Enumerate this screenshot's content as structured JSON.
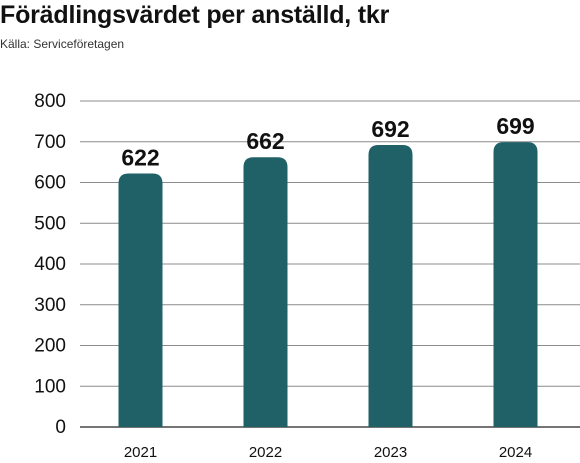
{
  "title": "Förädlingsvärdet per anställd, tkr",
  "source": "Källa: Serviceföretagen",
  "chart_data": {
    "type": "bar",
    "title": "Förädlingsvärdet per anställd, tkr",
    "subtitle": "Källa: Serviceföretagen",
    "categories": [
      "2021",
      "2022",
      "2023",
      "2024"
    ],
    "values": [
      622,
      662,
      692,
      699
    ],
    "value_labels": [
      "622",
      "662",
      "692",
      "699"
    ],
    "yticks": [
      "0",
      "100",
      "200",
      "300",
      "400",
      "500",
      "600",
      "700",
      "800"
    ],
    "ylim": [
      0,
      800
    ],
    "xlabel": "",
    "ylabel": "",
    "grid": true,
    "legend": "none",
    "colors": {
      "bar": "#1f6167",
      "grid": "#8c8c8c",
      "axis": "#222222",
      "text": "#111111"
    }
  }
}
